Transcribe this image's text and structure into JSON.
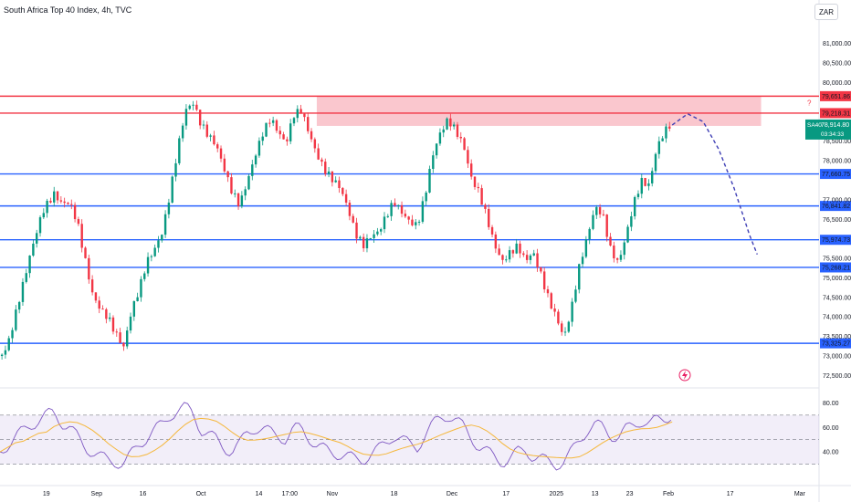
{
  "header": {
    "title": "South Africa Top 40 Index, 4h, TVC"
  },
  "currency": "ZAR",
  "colors": {
    "up": "#089981",
    "down": "#f23645",
    "support": "#2962ff",
    "resistance": "#f23645",
    "zone": "#f7a9b3",
    "rsi": "#7e57c2",
    "rsi_ma": "#f5b73b",
    "forecast": "#3f3fb5"
  },
  "price_axis": {
    "ticks": [
      "81,000.00",
      "80,500.00",
      "80,000.00",
      "78,500.00",
      "78,000.00",
      "77,000.00",
      "76,500.00",
      "75,500.00",
      "75,000.00",
      "74,500.00",
      "74,000.00",
      "73,500.00",
      "73,000.00",
      "72,500.00"
    ],
    "tick_values": [
      81000,
      80500,
      80000,
      78500,
      78000,
      77000,
      76500,
      75500,
      75000,
      74500,
      74000,
      73500,
      73000,
      72500
    ]
  },
  "rsi_axis": {
    "ticks": [
      "80.00",
      "60.00",
      "40.00"
    ],
    "tick_values": [
      80,
      60,
      40
    ]
  },
  "x_axis": {
    "labels": [
      "19",
      "Sep",
      "16",
      "Oct",
      "14",
      "17:00",
      "Nov",
      "18",
      "Dec",
      "17",
      "2025",
      "13",
      "23",
      "Feb",
      "17",
      "Mar"
    ]
  },
  "horizontal_levels": [
    {
      "label": "79,651.86",
      "value": 79651.86,
      "kind": "resistance"
    },
    {
      "label": "79,218.31",
      "value": 79218.31,
      "kind": "resistance"
    },
    {
      "label": "77,660.75",
      "value": 77660.75,
      "kind": "support"
    },
    {
      "label": "76,841.82",
      "value": 76841.82,
      "kind": "support"
    },
    {
      "label": "75,974.73",
      "value": 75974.73,
      "kind": "support"
    },
    {
      "label": "75,268.21",
      "value": 75268.21,
      "kind": "support"
    },
    {
      "label": "73,325.27",
      "value": 73325.27,
      "kind": "support"
    }
  ],
  "last_price": {
    "symbol": "SA40",
    "price": "78,914.80",
    "countdown": "03:34:33",
    "value": 78914.8
  },
  "zone_marker": "?",
  "chart_data": {
    "type": "line",
    "title": "South Africa Top 40 Index, 4h, TVC",
    "xlabel": "",
    "ylabel": "",
    "ylim": [
      72300,
      81600
    ],
    "grid": false,
    "price_path": [
      [
        0,
        73000
      ],
      [
        2,
        73400
      ],
      [
        5,
        74600
      ],
      [
        8,
        75700
      ],
      [
        11,
        76600
      ],
      [
        14,
        77000
      ],
      [
        16,
        76800
      ],
      [
        18,
        76900
      ],
      [
        20,
        76500
      ],
      [
        22,
        75600
      ],
      [
        24,
        74700
      ],
      [
        26,
        74300
      ],
      [
        28,
        74000
      ],
      [
        30,
        73500
      ],
      [
        32,
        73100
      ],
      [
        34,
        74000
      ],
      [
        36,
        74600
      ],
      [
        38,
        75400
      ],
      [
        40,
        75800
      ],
      [
        42,
        76300
      ],
      [
        44,
        77300
      ],
      [
        46,
        78400
      ],
      [
        48,
        79300
      ],
      [
        50,
        79400
      ],
      [
        52,
        78800
      ],
      [
        54,
        78500
      ],
      [
        56,
        78300
      ],
      [
        58,
        77800
      ],
      [
        60,
        77300
      ],
      [
        62,
        77000
      ],
      [
        64,
        77600
      ],
      [
        66,
        78200
      ],
      [
        68,
        78700
      ],
      [
        70,
        79000
      ],
      [
        72,
        78600
      ],
      [
        74,
        78300
      ],
      [
        76,
        79100
      ],
      [
        78,
        79300
      ],
      [
        80,
        78800
      ],
      [
        82,
        78300
      ],
      [
        84,
        77900
      ],
      [
        86,
        77600
      ],
      [
        88,
        77300
      ],
      [
        90,
        76700
      ],
      [
        92,
        76000
      ],
      [
        94,
        75700
      ],
      [
        96,
        76000
      ],
      [
        98,
        76200
      ],
      [
        100,
        76700
      ],
      [
        102,
        77100
      ],
      [
        104,
        76800
      ],
      [
        106,
        76500
      ],
      [
        108,
        76300
      ],
      [
        110,
        77000
      ],
      [
        112,
        78000
      ],
      [
        114,
        78600
      ],
      [
        116,
        79000
      ],
      [
        118,
        78800
      ],
      [
        120,
        78500
      ],
      [
        122,
        77700
      ],
      [
        124,
        77300
      ],
      [
        126,
        76600
      ],
      [
        128,
        75800
      ],
      [
        130,
        75300
      ],
      [
        132,
        75500
      ],
      [
        134,
        75700
      ],
      [
        136,
        75400
      ],
      [
        138,
        75700
      ],
      [
        140,
        75200
      ],
      [
        142,
        74600
      ],
      [
        144,
        74100
      ],
      [
        146,
        73500
      ],
      [
        148,
        74200
      ],
      [
        150,
        75200
      ],
      [
        152,
        75900
      ],
      [
        154,
        76700
      ],
      [
        156,
        76600
      ],
      [
        158,
        75800
      ],
      [
        160,
        75500
      ],
      [
        162,
        76200
      ],
      [
        164,
        77000
      ],
      [
        166,
        77500
      ],
      [
        168,
        77300
      ],
      [
        170,
        78200
      ],
      [
        172,
        78600
      ],
      [
        174,
        78900
      ]
    ],
    "forecast_path": [
      [
        174,
        78914.8
      ],
      [
        178,
        79200
      ],
      [
        182,
        79000
      ],
      [
        186,
        78300
      ],
      [
        190,
        77300
      ],
      [
        194,
        76100
      ],
      [
        196,
        75600
      ]
    ],
    "rsi": [
      [
        0,
        40
      ],
      [
        4,
        52
      ],
      [
        8,
        62
      ],
      [
        12,
        70
      ],
      [
        14,
        72
      ],
      [
        16,
        64
      ],
      [
        18,
        60
      ],
      [
        20,
        52
      ],
      [
        22,
        44
      ],
      [
        24,
        40
      ],
      [
        26,
        36
      ],
      [
        28,
        33
      ],
      [
        30,
        32
      ],
      [
        32,
        30
      ],
      [
        34,
        38
      ],
      [
        36,
        46
      ],
      [
        38,
        52
      ],
      [
        40,
        58
      ],
      [
        42,
        62
      ],
      [
        44,
        70
      ],
      [
        46,
        74
      ],
      [
        48,
        76
      ],
      [
        50,
        72
      ],
      [
        52,
        58
      ],
      [
        54,
        54
      ],
      [
        56,
        50
      ],
      [
        58,
        44
      ],
      [
        60,
        40
      ],
      [
        62,
        46
      ],
      [
        64,
        56
      ],
      [
        66,
        60
      ],
      [
        68,
        58
      ],
      [
        70,
        56
      ],
      [
        72,
        54
      ],
      [
        74,
        50
      ],
      [
        76,
        58
      ],
      [
        78,
        60
      ],
      [
        80,
        52
      ],
      [
        82,
        44
      ],
      [
        84,
        42
      ],
      [
        86,
        40
      ],
      [
        88,
        38
      ],
      [
        90,
        36
      ],
      [
        92,
        34
      ],
      [
        94,
        34
      ],
      [
        96,
        38
      ],
      [
        98,
        42
      ],
      [
        100,
        48
      ],
      [
        102,
        54
      ],
      [
        104,
        50
      ],
      [
        106,
        46
      ],
      [
        108,
        44
      ],
      [
        110,
        54
      ],
      [
        112,
        62
      ],
      [
        114,
        68
      ],
      [
        116,
        70
      ],
      [
        118,
        66
      ],
      [
        120,
        60
      ],
      [
        122,
        52
      ],
      [
        124,
        44
      ],
      [
        126,
        40
      ],
      [
        128,
        36
      ],
      [
        130,
        32
      ],
      [
        132,
        34
      ],
      [
        134,
        40
      ],
      [
        136,
        42
      ],
      [
        138,
        36
      ],
      [
        140,
        34
      ],
      [
        142,
        32
      ],
      [
        144,
        30
      ],
      [
        146,
        32
      ],
      [
        148,
        40
      ],
      [
        150,
        50
      ],
      [
        152,
        58
      ],
      [
        154,
        62
      ],
      [
        156,
        60
      ],
      [
        158,
        54
      ],
      [
        160,
        52
      ],
      [
        162,
        58
      ],
      [
        164,
        62
      ],
      [
        166,
        66
      ],
      [
        168,
        62
      ],
      [
        170,
        66
      ],
      [
        172,
        68
      ],
      [
        174,
        70
      ]
    ],
    "rsi_ylim": [
      20,
      90
    ],
    "rsi_band": [
      30,
      70
    ]
  }
}
